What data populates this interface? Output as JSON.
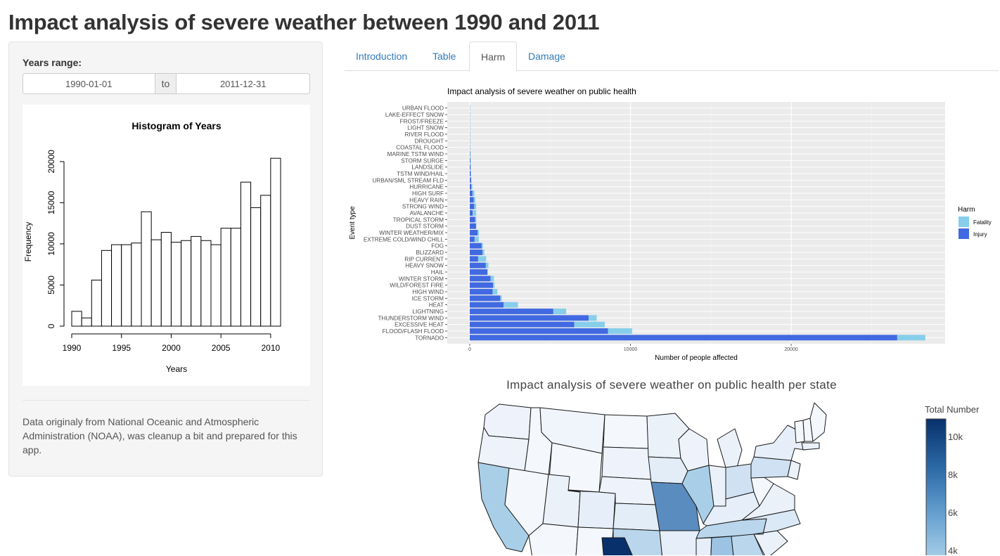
{
  "page": {
    "title": "Impact analysis of severe weather between 1990 and 2011"
  },
  "sidebar": {
    "range_label": "Years range:",
    "start_date": "1990-01-01",
    "separator": "to",
    "end_date": "2011-12-31",
    "note": "Data originaly from National Oceanic and Atmospheric Administration (NOAA), was cleanup a bit and prepared for this app."
  },
  "tabs": [
    {
      "label": "Introduction",
      "active": false
    },
    {
      "label": "Table",
      "active": false
    },
    {
      "label": "Harm",
      "active": true
    },
    {
      "label": "Damage",
      "active": false
    }
  ],
  "chart_data": [
    {
      "type": "bar",
      "title": "Histogram of Years",
      "xlabel": "Years",
      "ylabel": "Frequency",
      "xlim": [
        1990,
        2011
      ],
      "ylim": [
        0,
        20500
      ],
      "x_ticks": [
        1990,
        1995,
        2000,
        2005,
        2010
      ],
      "y_ticks": [
        0,
        5000,
        10000,
        15000,
        20000
      ],
      "bins": [
        {
          "x0": 1990,
          "x1": 1991,
          "value": 1800
        },
        {
          "x0": 1991,
          "x1": 1992,
          "value": 1000
        },
        {
          "x0": 1992,
          "x1": 1993,
          "value": 5600
        },
        {
          "x0": 1993,
          "x1": 1994,
          "value": 9200
        },
        {
          "x0": 1994,
          "x1": 1995,
          "value": 9900
        },
        {
          "x0": 1995,
          "x1": 1996,
          "value": 9900
        },
        {
          "x0": 1996,
          "x1": 1997,
          "value": 10100
        },
        {
          "x0": 1997,
          "x1": 1998,
          "value": 13900
        },
        {
          "x0": 1998,
          "x1": 1999,
          "value": 10500
        },
        {
          "x0": 1999,
          "x1": 2000,
          "value": 11400
        },
        {
          "x0": 2000,
          "x1": 2001,
          "value": 10200
        },
        {
          "x0": 2001,
          "x1": 2002,
          "value": 10400
        },
        {
          "x0": 2002,
          "x1": 2003,
          "value": 10900
        },
        {
          "x0": 2003,
          "x1": 2004,
          "value": 10400
        },
        {
          "x0": 2004,
          "x1": 2005,
          "value": 9900
        },
        {
          "x0": 2005,
          "x1": 2006,
          "value": 11900
        },
        {
          "x0": 2006,
          "x1": 2007,
          "value": 11900
        },
        {
          "x0": 2007,
          "x1": 2008,
          "value": 17500
        },
        {
          "x0": 2008,
          "x1": 2009,
          "value": 14400
        },
        {
          "x0": 2009,
          "x1": 2010,
          "value": 15900
        },
        {
          "x0": 2010,
          "x1": 2011,
          "value": 20400
        }
      ],
      "bar_fill": "#ffffff",
      "bar_stroke": "#000000"
    },
    {
      "type": "bar",
      "orientation": "horizontal",
      "stacked": true,
      "title": "Impact analysis of severe weather on public health",
      "xlabel": "Number of people affected",
      "ylabel": "Event type",
      "xlim": [
        0,
        30000
      ],
      "x_ticks": [
        0,
        10000,
        20000
      ],
      "grid": true,
      "legend": {
        "title": "Harm",
        "placement": "right"
      },
      "categories": [
        "URBAN FLOOD",
        "LAKE-EFFECT SNOW",
        "FROST/FREEZE",
        "LIGHT SNOW",
        "RIVER FLOOD",
        "DROUGHT",
        "COASTAL FLOOD",
        "MARINE TSTM WIND",
        "STORM SURGE",
        "LANDSLIDE",
        "TSTM WIND/HAIL",
        "URBAN/SML STREAM FLD",
        "HURRICANE",
        "HIGH SURF",
        "HEAVY RAIN",
        "STRONG WIND",
        "AVALANCHE",
        "TROPICAL STORM",
        "DUST STORM",
        "WINTER WEATHER/MIX",
        "EXTREME COLD/WIND CHILL",
        "FOG",
        "BLIZZARD",
        "RIP CURRENT",
        "HEAVY SNOW",
        "HAIL",
        "WINTER STORM",
        "WILD/FOREST FIRE",
        "HIGH WIND",
        "ICE STORM",
        "HEAT",
        "LIGHTNING",
        "THUNDERSTORM WIND",
        "EXCESSIVE HEAT",
        "FLOOD/FLASH FLOOD",
        "TORNADO"
      ],
      "series": [
        {
          "name": "Injury",
          "color": "#4169e1",
          "values": [
            2,
            2,
            3,
            4,
            5,
            6,
            7,
            20,
            40,
            50,
            60,
            80,
            100,
            170,
            250,
            280,
            180,
            340,
            390,
            490,
            300,
            740,
            790,
            520,
            1000,
            1100,
            1300,
            1450,
            1420,
            1900,
            2100,
            5200,
            7400,
            6500,
            8600,
            26600
          ]
        },
        {
          "name": "Fatality",
          "color": "#87ceeb",
          "values": [
            1,
            1,
            2,
            2,
            3,
            4,
            4,
            30,
            20,
            10,
            20,
            20,
            60,
            120,
            100,
            120,
            220,
            70,
            20,
            80,
            260,
            80,
            120,
            500,
            160,
            20,
            200,
            90,
            300,
            90,
            900,
            800,
            500,
            1900,
            1500,
            1750
          ]
        }
      ]
    },
    {
      "type": "heatmap",
      "subtype": "choropleth",
      "title": "Impact analysis of severe weather on public health per state",
      "colorbar_title": "Total Number",
      "colorbar_ticks": [
        "10k",
        "8k",
        "6k",
        "4k"
      ],
      "scale": [
        "#eff3ff",
        "#08306b"
      ]
    }
  ]
}
